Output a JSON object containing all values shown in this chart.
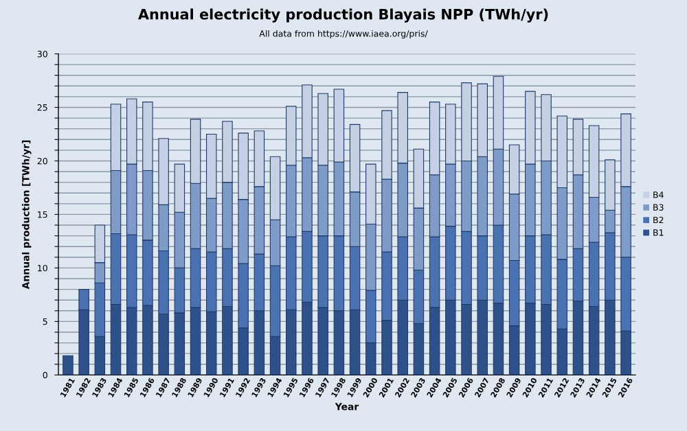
{
  "chart_data": {
    "type": "bar",
    "stacked": true,
    "title": "Annual electricity production Blayais NPP (TWh/yr)",
    "subtitle": "All data from https://www.iaea.org/pris/",
    "xlabel": "Year",
    "ylabel": "Annual production [TWh/yr]",
    "categories": [
      "1981",
      "1982",
      "1983",
      "1984",
      "1985",
      "1986",
      "1987",
      "1988",
      "1989",
      "1990",
      "1991",
      "1992",
      "1993",
      "1994",
      "1995",
      "1996",
      "1997",
      "1998",
      "1999",
      "2000",
      "2001",
      "2002",
      "2003",
      "2004",
      "2005",
      "2006",
      "2007",
      "2008",
      "2009",
      "2010",
      "2011",
      "2012",
      "2013",
      "2014",
      "2015",
      "2016"
    ],
    "series": [
      {
        "name": "B1",
        "color": "#2f5189",
        "values": [
          1.8,
          6.1,
          3.6,
          6.6,
          6.3,
          6.5,
          5.7,
          5.8,
          6.3,
          5.9,
          6.4,
          4.4,
          6.0,
          3.6,
          6.1,
          6.8,
          6.3,
          6.0,
          6.1,
          3.0,
          5.1,
          7.0,
          4.8,
          6.3,
          7.0,
          6.6,
          7.0,
          6.7,
          4.6,
          6.7,
          6.6,
          4.3,
          6.9,
          6.4,
          7.0,
          4.1
        ]
      },
      {
        "name": "B2",
        "color": "#4a72b0",
        "values": [
          null,
          1.9,
          5.0,
          6.6,
          6.8,
          6.1,
          5.9,
          4.2,
          5.5,
          5.6,
          5.4,
          6.0,
          5.3,
          6.6,
          6.8,
          6.6,
          6.7,
          7.0,
          5.9,
          4.9,
          6.4,
          5.9,
          5.0,
          6.6,
          6.9,
          6.8,
          6.0,
          7.3,
          6.1,
          6.3,
          6.5,
          6.5,
          4.9,
          6.0,
          6.3,
          6.9
        ]
      },
      {
        "name": "B3",
        "color": "#7f9cc9",
        "values": [
          null,
          null,
          1.9,
          5.9,
          6.6,
          6.5,
          4.3,
          5.2,
          6.1,
          5.0,
          6.2,
          6.0,
          6.3,
          4.3,
          6.7,
          6.9,
          6.6,
          6.9,
          5.1,
          6.2,
          6.8,
          6.9,
          5.8,
          5.8,
          5.8,
          6.6,
          7.4,
          7.1,
          6.2,
          6.7,
          6.9,
          6.7,
          6.9,
          4.2,
          2.1,
          6.6
        ]
      },
      {
        "name": "B4",
        "color": "#c5d0e4",
        "values": [
          null,
          null,
          3.5,
          6.2,
          6.1,
          6.4,
          6.2,
          4.5,
          6.0,
          6.0,
          5.7,
          6.2,
          5.2,
          5.9,
          5.5,
          6.8,
          6.7,
          6.8,
          6.3,
          5.6,
          6.4,
          6.6,
          5.5,
          6.8,
          5.6,
          7.3,
          6.8,
          6.8,
          4.6,
          6.8,
          6.2,
          6.7,
          5.2,
          6.7,
          4.7,
          6.8
        ]
      }
    ],
    "ylim": [
      0,
      30
    ],
    "yticks": [
      0,
      {
        "value": 1,
        "label": null
      },
      {
        "value": 2,
        "label": null
      },
      {
        "value": 3,
        "label": null
      },
      {
        "value": 4,
        "label": null
      },
      5,
      {
        "value": 6,
        "label": null
      },
      {
        "value": 7,
        "label": null
      },
      {
        "value": 8,
        "label": null
      },
      {
        "value": 9,
        "label": null
      },
      10,
      {
        "value": 11,
        "label": null
      },
      {
        "value": 12,
        "label": null
      },
      {
        "value": 13,
        "label": null
      },
      {
        "value": 14,
        "label": null
      },
      15,
      {
        "value": 16,
        "label": null
      },
      {
        "value": 17,
        "label": null
      },
      {
        "value": 18,
        "label": null
      },
      {
        "value": 19,
        "label": null
      },
      20,
      {
        "value": 21,
        "label": null
      },
      {
        "value": 22,
        "label": null
      },
      {
        "value": 23,
        "label": null
      },
      {
        "value": 24,
        "label": null
      },
      25,
      {
        "value": 26,
        "label": null
      },
      {
        "value": 27,
        "label": null
      },
      {
        "value": 28,
        "label": null
      },
      {
        "value": 29,
        "label": null
      },
      30
    ],
    "grid": "y",
    "legend": "right"
  }
}
